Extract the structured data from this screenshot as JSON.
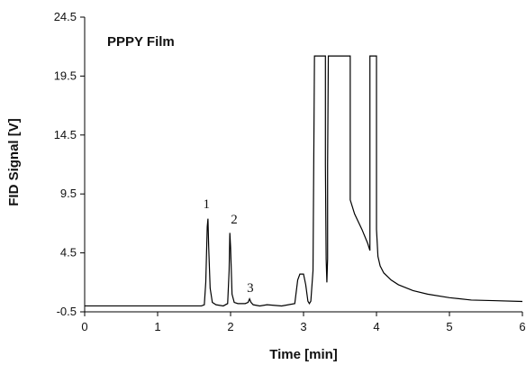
{
  "chart_data": {
    "type": "line",
    "title": "PPPY Film",
    "xlabel": "Time [min]",
    "ylabel": "FID Signal [V]",
    "xlim": [
      0,
      6
    ],
    "ylim": [
      -0.5,
      24.5
    ],
    "x_ticks": [
      "0",
      "1",
      "2",
      "3",
      "4",
      "5",
      "6"
    ],
    "y_ticks": [
      "-0.5",
      "4.5",
      "9.5",
      "14.5",
      "19.5",
      "24.5"
    ],
    "grid": false,
    "legend": "none",
    "line_color": "#000000",
    "series": [
      {
        "x": [
          0.0,
          1.6,
          1.64,
          1.66,
          1.68,
          1.69,
          1.7,
          1.72,
          1.75,
          1.8,
          1.9,
          1.96,
          1.98,
          1.99,
          2.0,
          2.02,
          2.05,
          2.1,
          2.2,
          2.24,
          2.26,
          2.28,
          2.31,
          2.4,
          2.5,
          2.7,
          2.88,
          2.92,
          2.95,
          3.0,
          3.03,
          3.06,
          3.08,
          3.1,
          3.13,
          3.15,
          3.15,
          3.3,
          3.3,
          3.31,
          3.32,
          3.33,
          3.33,
          3.34,
          3.35,
          3.35,
          3.45,
          3.55,
          3.64,
          3.64,
          3.7,
          3.8,
          3.88,
          3.91,
          3.91,
          4.0,
          4.0,
          4.02,
          4.05,
          4.1,
          4.2,
          4.3,
          4.5,
          4.7,
          5.0,
          5.3,
          5.6,
          6.0
        ],
        "y": [
          0.0,
          0.0,
          0.1,
          2.0,
          6.7,
          7.4,
          5.0,
          1.5,
          0.3,
          0.1,
          0.0,
          0.2,
          3.0,
          6.2,
          5.0,
          1.0,
          0.3,
          0.2,
          0.2,
          0.3,
          0.6,
          0.3,
          0.1,
          0.0,
          0.1,
          0.0,
          0.2,
          2.2,
          2.7,
          2.7,
          1.8,
          0.4,
          0.2,
          0.4,
          3.0,
          21.2,
          21.2,
          21.2,
          12.0,
          4.0,
          2.0,
          4.0,
          12.0,
          21.2,
          21.2,
          21.2,
          21.2,
          21.2,
          21.2,
          9.0,
          7.8,
          6.5,
          5.3,
          4.7,
          21.2,
          21.2,
          6.5,
          4.2,
          3.4,
          2.8,
          2.2,
          1.8,
          1.3,
          1.0,
          0.7,
          0.5,
          0.45,
          0.38
        ]
      }
    ],
    "annotations": [
      {
        "text": "1",
        "x": 1.67,
        "y": 8.3
      },
      {
        "text": "2",
        "x": 2.05,
        "y": 7.0
      },
      {
        "text": "3",
        "x": 2.27,
        "y": 1.2
      }
    ]
  }
}
